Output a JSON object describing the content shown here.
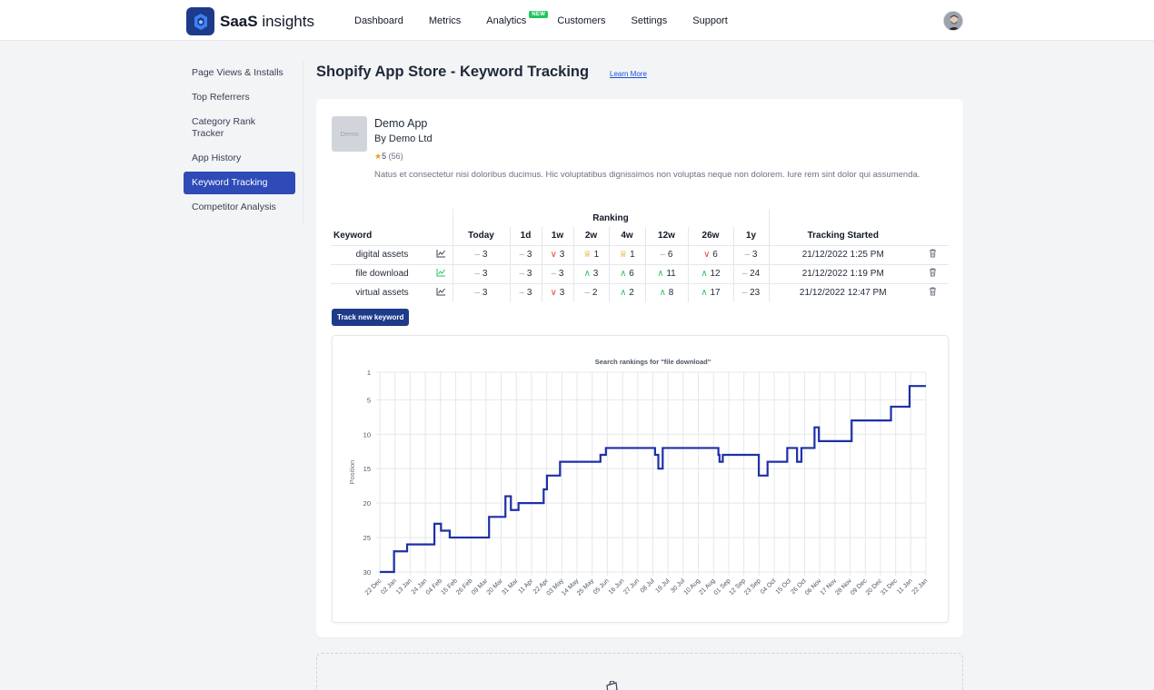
{
  "header": {
    "logo_bold": "SaaS",
    "logo_rest": " insights",
    "nav": [
      {
        "label": "Dashboard"
      },
      {
        "label": "Metrics"
      },
      {
        "label": "Analytics",
        "badge": "NEW"
      },
      {
        "label": "Customers"
      },
      {
        "label": "Settings"
      },
      {
        "label": "Support"
      }
    ]
  },
  "sidebar": {
    "items": [
      {
        "label": "Page Views & Installs"
      },
      {
        "label": "Top Referrers"
      },
      {
        "label": "Category Rank Tracker"
      },
      {
        "label": "App History"
      },
      {
        "label": "Keyword Tracking",
        "active": true
      },
      {
        "label": "Competitor Analysis"
      }
    ]
  },
  "page": {
    "title": "Shopify App Store - Keyword Tracking",
    "learn_more": "Learn More"
  },
  "app": {
    "thumb": "Demo",
    "name": "Demo App",
    "by": "By Demo Ltd",
    "star": "★",
    "rating": "5",
    "reviews": "(56)",
    "description": "Natus et consectetur nisi doloribus ducimus. Hic voluptatibus dignissimos non voluptas neque non dolorem. Iure rem sint dolor qui assumenda."
  },
  "table": {
    "group_header": "Ranking",
    "headers": {
      "keyword": "Keyword",
      "periods": [
        "Today",
        "1d",
        "1w",
        "2w",
        "4w",
        "12w",
        "26w",
        "1y"
      ],
      "tracking": "Tracking Started"
    },
    "rows": [
      {
        "keyword": "digital assets",
        "chart_icon_color": "#374151",
        "cells": [
          [
            "same",
            "3"
          ],
          [
            "same",
            "3"
          ],
          [
            "down",
            "3"
          ],
          [
            "trophy",
            "1"
          ],
          [
            "trophy",
            "1"
          ],
          [
            "same",
            "6"
          ],
          [
            "down",
            "6"
          ],
          [
            "same",
            "3"
          ]
        ],
        "started": "21/12/2022 1:25 PM"
      },
      {
        "keyword": "file download",
        "chart_icon_color": "#22c55e",
        "cells": [
          [
            "same",
            "3"
          ],
          [
            "same",
            "3"
          ],
          [
            "same",
            "3"
          ],
          [
            "up",
            "3"
          ],
          [
            "up",
            "6"
          ],
          [
            "up",
            "11"
          ],
          [
            "up",
            "12"
          ],
          [
            "same",
            "24"
          ]
        ],
        "started": "21/12/2022 1:19 PM"
      },
      {
        "keyword": "virtual assets",
        "chart_icon_color": "#374151",
        "cells": [
          [
            "same",
            "3"
          ],
          [
            "same",
            "3"
          ],
          [
            "down",
            "3"
          ],
          [
            "same",
            "2"
          ],
          [
            "up",
            "2"
          ],
          [
            "up",
            "8"
          ],
          [
            "up",
            "17"
          ],
          [
            "same",
            "23"
          ]
        ],
        "started": "21/12/2022 12:47 PM"
      }
    ]
  },
  "track_button": "Track new keyword",
  "icons": {
    "chart": "line-chart-icon",
    "trash": "trash-icon",
    "up": "chevron-up-icon",
    "down": "chevron-down-icon",
    "same": "dash-icon",
    "trophy": "trophy-icon"
  },
  "colors": {
    "accent": "#1e3a8a",
    "active": "#2e4bb8",
    "up": "#22c55e",
    "down": "#ef4444",
    "line": "#1e2fa8"
  },
  "chart_data": {
    "type": "line",
    "title": "Search rankings for \"file download\"",
    "ylabel": "Position",
    "xlabel": "",
    "ylim": [
      30,
      1
    ],
    "y_inverted": true,
    "yticks": [
      1,
      5,
      10,
      15,
      20,
      25,
      30
    ],
    "x_ticks": [
      "22 Dec",
      "02 Jan",
      "13 Jan",
      "24 Jan",
      "04 Feb",
      "15 Feb",
      "26 Feb",
      "09 Mar",
      "20 Mar",
      "31 Mar",
      "11 Apr",
      "22 Apr",
      "03 May",
      "14 May",
      "25 May",
      "05 Jun",
      "16 Jun",
      "27 Jun",
      "08 Jul",
      "19 Jul",
      "30 Jul",
      "10 Aug",
      "21 Aug",
      "01 Sep",
      "12 Sep",
      "23 Sep",
      "04 Oct",
      "15 Oct",
      "26 Oct",
      "06 Nov",
      "17 Nov",
      "28 Nov",
      "09 Dec",
      "20 Dec",
      "31 Dec",
      "11 Jan",
      "22 Jan"
    ],
    "grid": true,
    "legend": "none",
    "step": true,
    "series": [
      {
        "points": [
          [
            0,
            30
          ],
          [
            1.3,
            27
          ],
          [
            2.5,
            26
          ],
          [
            5,
            23
          ],
          [
            5.6,
            24
          ],
          [
            6.4,
            25
          ],
          [
            10,
            22
          ],
          [
            11.5,
            19
          ],
          [
            12,
            21
          ],
          [
            12.7,
            20
          ],
          [
            15,
            18
          ],
          [
            15.3,
            16
          ],
          [
            16.5,
            14
          ],
          [
            20.2,
            13
          ],
          [
            20.7,
            12
          ],
          [
            25.2,
            13
          ],
          [
            25.5,
            15
          ],
          [
            25.9,
            12
          ],
          [
            31,
            13
          ],
          [
            31.1,
            14
          ],
          [
            31.4,
            13
          ],
          [
            34.7,
            16
          ],
          [
            35.5,
            14
          ],
          [
            37.3,
            12
          ],
          [
            38.2,
            14
          ],
          [
            38.6,
            12
          ],
          [
            39.8,
            9
          ],
          [
            40.2,
            11
          ],
          [
            43.2,
            8
          ],
          [
            46.8,
            6
          ],
          [
            48.5,
            3
          ],
          [
            50,
            3
          ]
        ]
      }
    ]
  }
}
